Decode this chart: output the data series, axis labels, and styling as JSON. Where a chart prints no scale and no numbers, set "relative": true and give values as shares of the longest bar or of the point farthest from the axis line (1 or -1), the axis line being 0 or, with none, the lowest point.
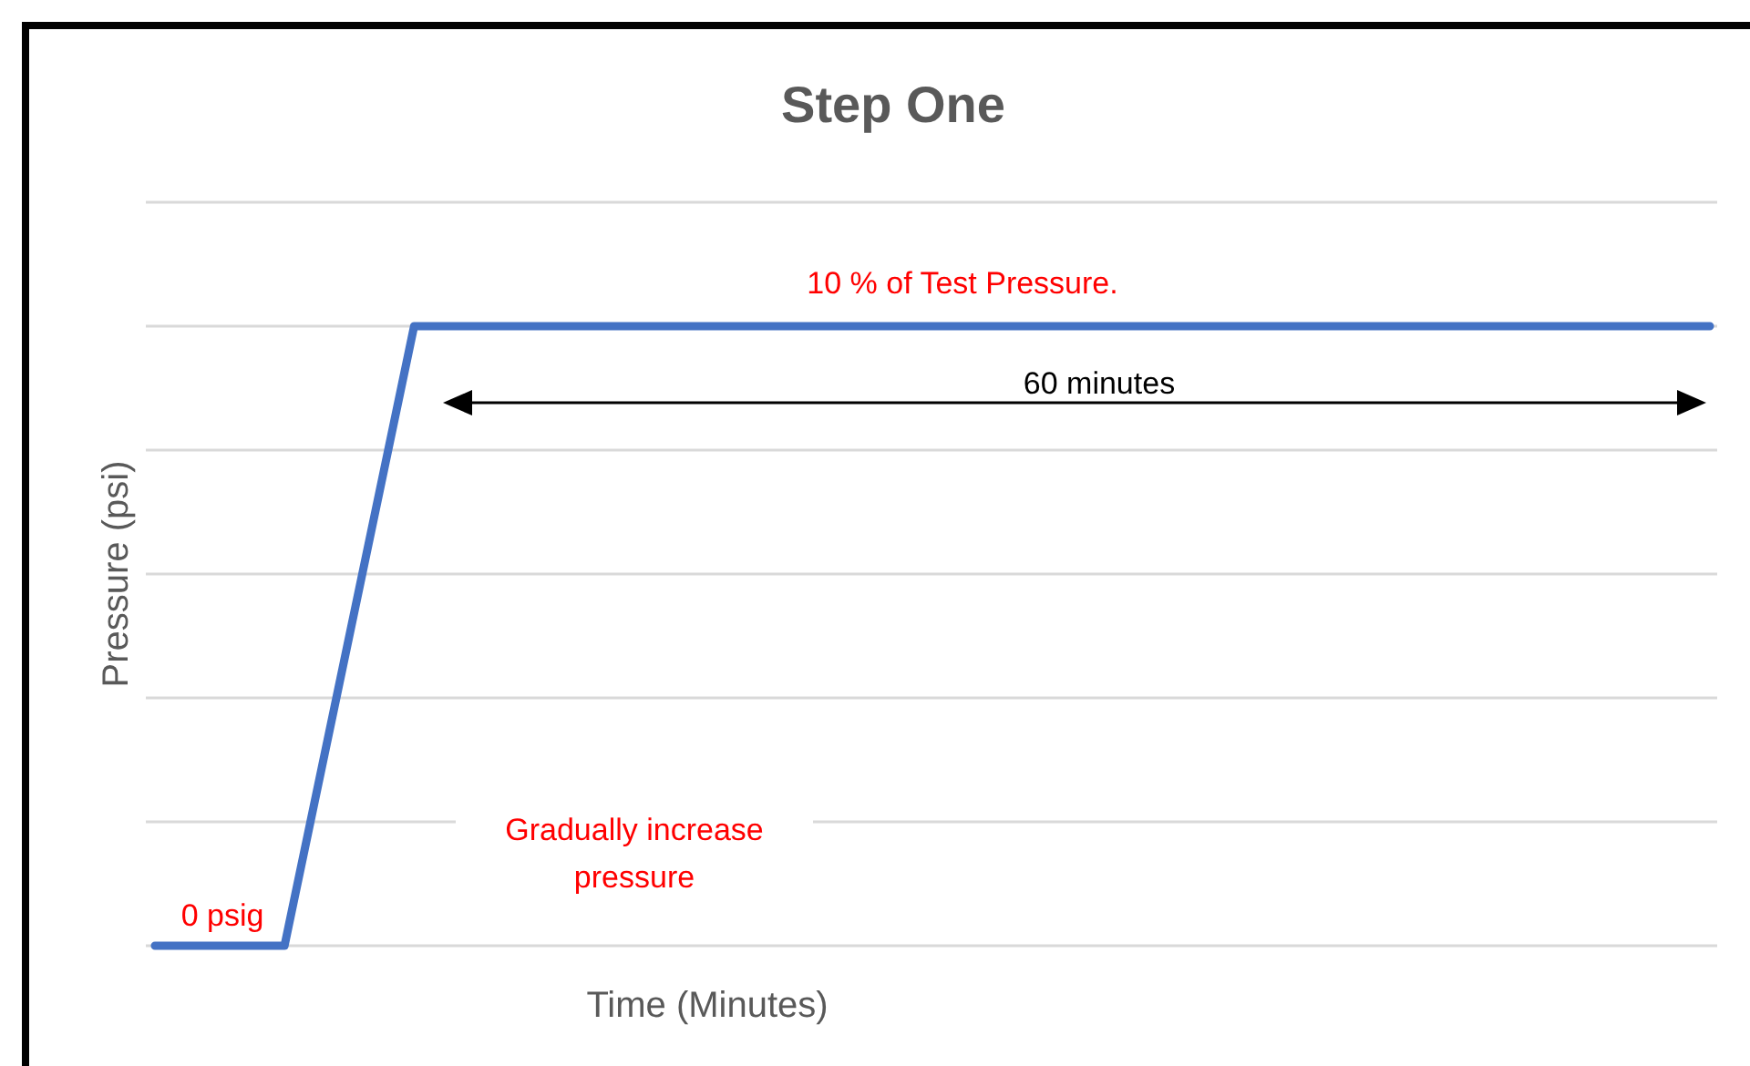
{
  "chart_data": {
    "type": "line",
    "title": "Step One",
    "xlabel": "Time (Minutes)",
    "ylabel": "Pressure (psi)",
    "categories": [
      null,
      null,
      null,
      null,
      null,
      null,
      null,
      null,
      null,
      null,
      null,
      null,
      null
    ],
    "series": [
      {
        "color": "#4472c4",
        "values": [
          0,
          0,
          1,
          1,
          1,
          1,
          1,
          1,
          1,
          1,
          1,
          1,
          1
        ]
      }
    ],
    "relative": true,
    "grid": true,
    "annotations": [
      "10 % of Test Pressure.",
      "60 minutes",
      "Gradually increase pressure",
      "0 psig"
    ]
  }
}
